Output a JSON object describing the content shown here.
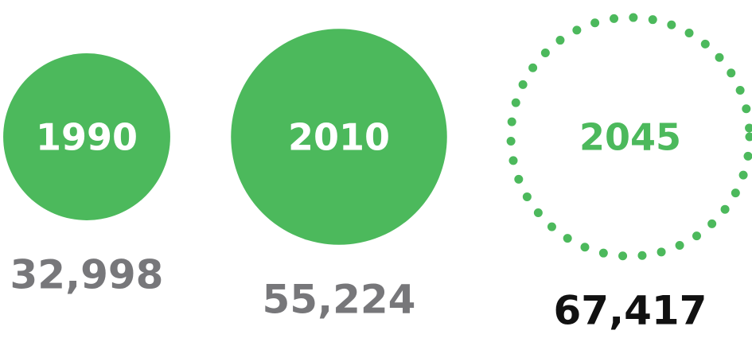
{
  "chart_data": {
    "type": "bubble",
    "categories": [
      "1990",
      "2010",
      "2045"
    ],
    "values": [
      32998,
      55224,
      67417
    ],
    "value_labels": [
      "32,998",
      "55,224",
      "67,417"
    ],
    "color": "#4cb95c",
    "styles": [
      "solid",
      "solid",
      "dotted"
    ],
    "label_colors": [
      "#77777a",
      "#77777a",
      "#111111"
    ]
  }
}
